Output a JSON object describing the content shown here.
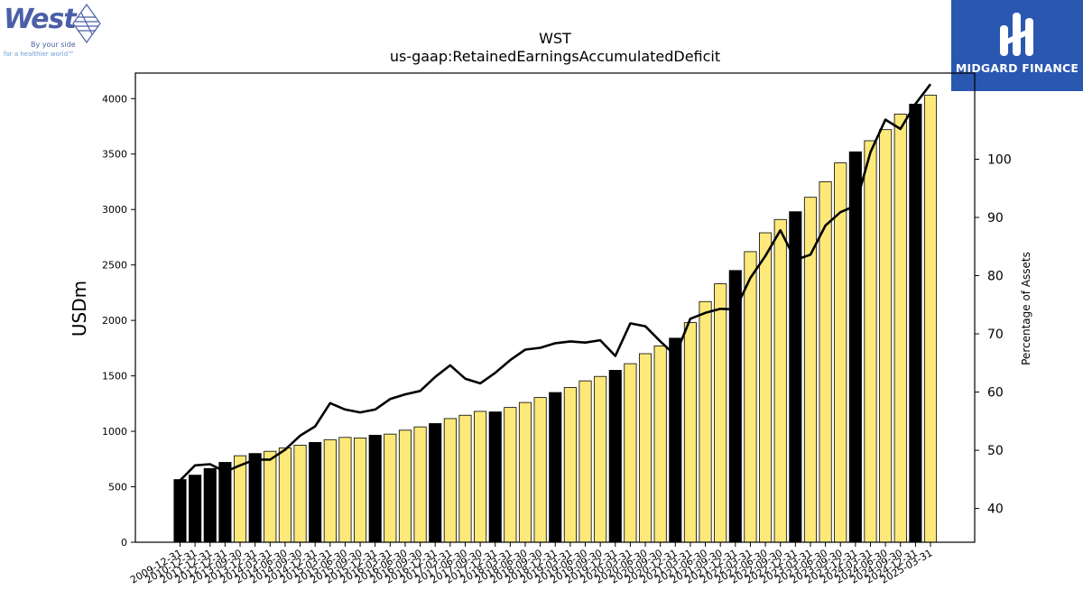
{
  "brand": {
    "company_logo": {
      "name": "West",
      "tagline_1": "By your side",
      "tagline_2": "for a healthier world™"
    },
    "publisher_logo": {
      "name": "MIDGARD FINANCE"
    }
  },
  "chart_data": {
    "type": "bar",
    "title": "WST",
    "subtitle": "us-gaap:RetainedEarningsAccumulatedDeficit",
    "ylabel": "USDm",
    "y2label": "Percentage of Assets",
    "ylim": [
      0,
      4230
    ],
    "y2lim": [
      34.2,
      114.8
    ],
    "yticks": [
      0,
      500,
      1000,
      1500,
      2000,
      2500,
      3000,
      3500,
      4000
    ],
    "y2ticks": [
      40,
      50,
      60,
      70,
      80,
      90,
      100
    ],
    "grid": false,
    "colors": {
      "annual_bar": "#000000",
      "quarter_bar": "#fde97a",
      "bar_edge": "#000000",
      "line": "#000000"
    },
    "categories": [
      "2009-12-31",
      "2010-12-31",
      "2011-12-31",
      "2012-12-31",
      "2013-09-30",
      "2013-12-31",
      "2014-03-31",
      "2014-06-30",
      "2014-09-30",
      "2014-12-31",
      "2015-03-31",
      "2015-06-30",
      "2015-09-30",
      "2015-12-31",
      "2016-03-31",
      "2016-06-30",
      "2016-09-30",
      "2016-12-31",
      "2017-03-31",
      "2017-06-30",
      "2017-09-30",
      "2017-12-31",
      "2018-03-31",
      "2018-06-30",
      "2018-09-30",
      "2018-12-31",
      "2019-03-31",
      "2019-06-30",
      "2019-09-30",
      "2019-12-31",
      "2020-03-31",
      "2020-06-30",
      "2020-09-30",
      "2020-12-31",
      "2021-03-31",
      "2021-06-30",
      "2021-09-30",
      "2021-12-31",
      "2022-03-31",
      "2022-06-30",
      "2022-09-30",
      "2022-12-31",
      "2023-03-31",
      "2023-06-30",
      "2023-09-30",
      "2023-12-31",
      "2024-03-31",
      "2024-06-30",
      "2024-09-30",
      "2024-12-31",
      "2025-03-31"
    ],
    "bar_types": [
      "annual",
      "annual",
      "annual",
      "annual",
      "quarter",
      "annual",
      "quarter",
      "quarter",
      "quarter",
      "annual",
      "quarter",
      "quarter",
      "quarter",
      "annual",
      "quarter",
      "quarter",
      "quarter",
      "annual",
      "quarter",
      "quarter",
      "quarter",
      "annual",
      "quarter",
      "quarter",
      "quarter",
      "annual",
      "quarter",
      "quarter",
      "quarter",
      "annual",
      "quarter",
      "quarter",
      "quarter",
      "annual",
      "quarter",
      "quarter",
      "quarter",
      "annual",
      "quarter",
      "quarter",
      "quarter",
      "annual",
      "quarter",
      "quarter",
      "quarter",
      "annual",
      "quarter",
      "quarter",
      "quarter",
      "annual",
      "quarter"
    ],
    "series": [
      {
        "name": "USDm",
        "kind": "bar",
        "axis": "left",
        "values": [
          565,
          605,
          665,
          720,
          780,
          800,
          820,
          850,
          875,
          900,
          925,
          945,
          940,
          965,
          975,
          1010,
          1040,
          1070,
          1115,
          1145,
          1180,
          1175,
          1215,
          1260,
          1305,
          1350,
          1395,
          1455,
          1495,
          1550,
          1610,
          1700,
          1770,
          1840,
          1980,
          2170,
          2330,
          2450,
          2620,
          2790,
          2910,
          2980,
          3110,
          3250,
          3420,
          3520,
          3620,
          3720,
          3860,
          3950,
          4030
        ]
      },
      {
        "name": "Percentage of Assets",
        "kind": "line",
        "axis": "right",
        "values": [
          44.8,
          47.4,
          47.6,
          46.3,
          47.4,
          48.4,
          48.4,
          50.1,
          52.5,
          54.1,
          58.1,
          57.0,
          56.5,
          57.0,
          58.8,
          59.6,
          60.2,
          62.6,
          64.6,
          62.3,
          61.5,
          63.3,
          65.5,
          67.3,
          67.6,
          68.4,
          68.7,
          68.5,
          68.9,
          66.2,
          71.8,
          71.3,
          68.7,
          66.3,
          72.6,
          73.6,
          74.3,
          74.2,
          79.6,
          83.4,
          87.8,
          82.7,
          83.6,
          88.6,
          90.9,
          92.0,
          101.2,
          106.8,
          105.2,
          109.5,
          112.9
        ]
      }
    ]
  }
}
